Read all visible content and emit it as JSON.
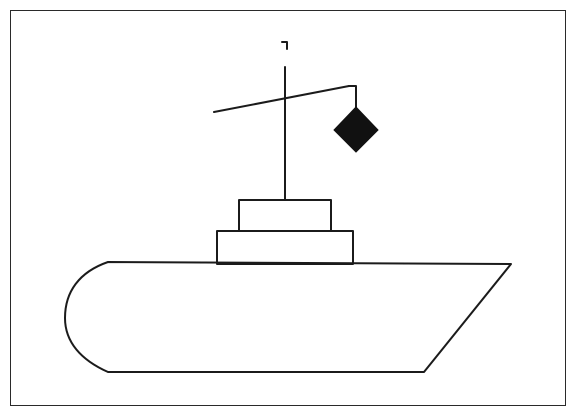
{
  "diagram": {
    "subject": "ship-silhouette",
    "shapes": [
      "hull",
      "cabin-lower",
      "cabin-upper",
      "mast",
      "mast-top-flag",
      "yard-arm",
      "signal-hanger",
      "diamond-signal"
    ],
    "colors": {
      "background": "#ffffff",
      "frame": "#2a2a2a",
      "line": "#1b1b1b",
      "signal_fill": "#111111"
    }
  }
}
